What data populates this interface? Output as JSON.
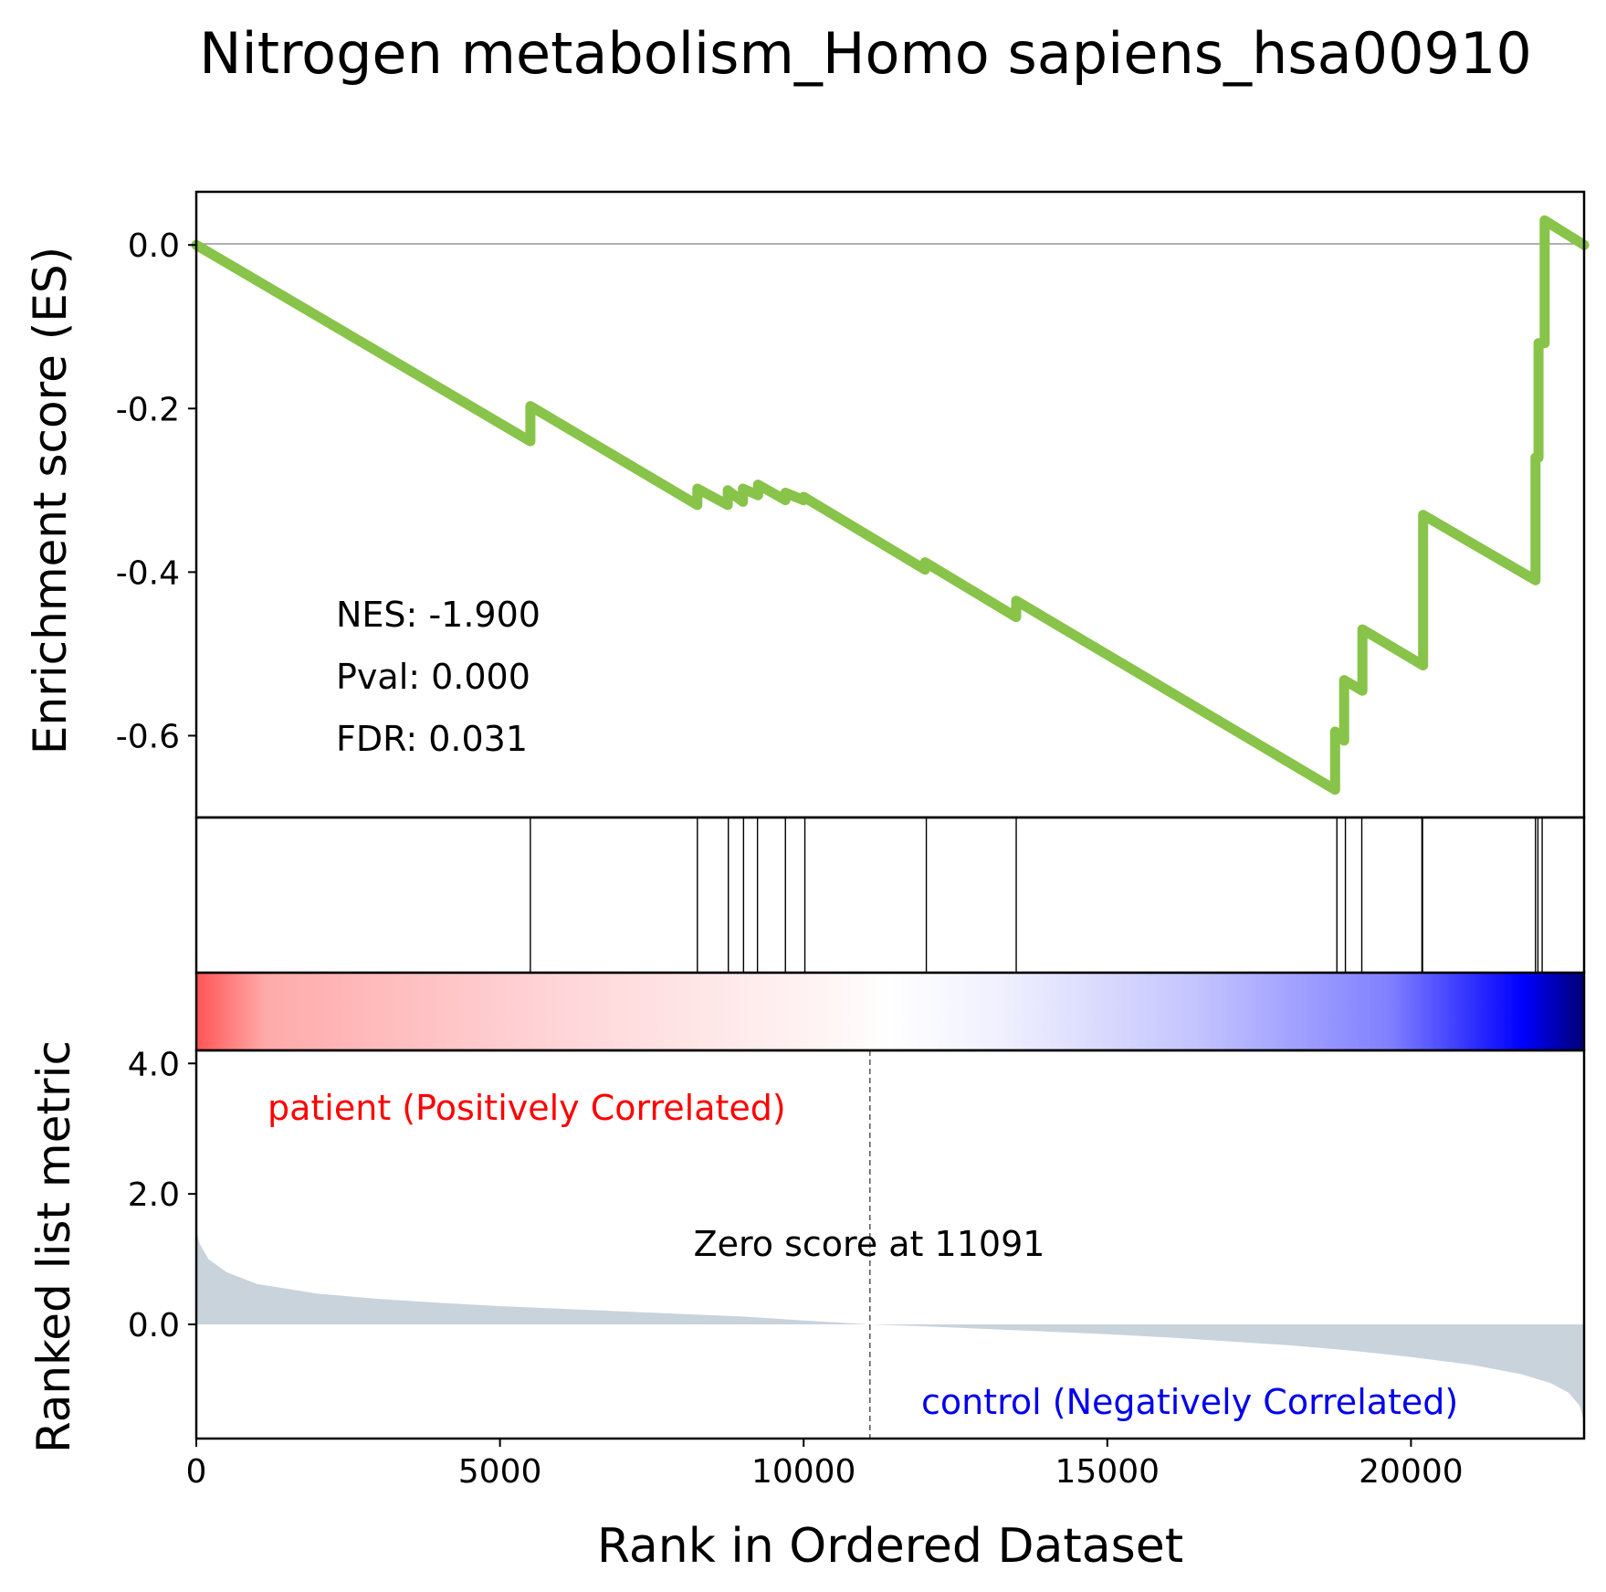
{
  "title": "Nitrogen metabolism_Homo sapiens_hsa00910",
  "colors": {
    "es_line": "#88c34a",
    "metric_fill": "#c9d3dc",
    "positive_label": "#ff0000",
    "negative_label": "#0000ee",
    "frame": "#000000"
  },
  "chart_data": [
    {
      "type": "line",
      "title": "",
      "xlabel": "",
      "ylabel": "Enrichment score (ES)",
      "xlim": [
        0,
        22850
      ],
      "ylim": [
        -0.7,
        0.065
      ],
      "yticks": [
        0.0,
        -0.2,
        -0.4,
        -0.6
      ],
      "ytick_labels": [
        "0.0",
        "-0.2",
        "-0.4",
        "-0.6"
      ],
      "reference_line_y": 0.0,
      "stats": {
        "nes": "NES: -1.900",
        "pval": "Pval: 0.000",
        "fdr": "FDR: 0.031"
      },
      "series": [
        {
          "x": [
            0,
            5500,
            5500,
            8250,
            8250,
            8750,
            8750,
            9000,
            9000,
            9250,
            9250,
            9700,
            9700,
            10000,
            10000,
            12000,
            12000,
            13500,
            13500,
            18750,
            18750,
            18900,
            18900,
            19200,
            19200,
            20200,
            20200,
            20200,
            22050,
            22050,
            22100,
            22100,
            22200,
            22200,
            22850
          ],
          "y": [
            0,
            -0.24,
            -0.197,
            -0.318,
            -0.298,
            -0.318,
            -0.3,
            -0.314,
            -0.298,
            -0.306,
            -0.293,
            -0.312,
            -0.303,
            -0.312,
            -0.308,
            -0.397,
            -0.388,
            -0.455,
            -0.435,
            -0.666,
            -0.595,
            -0.606,
            -0.532,
            -0.545,
            -0.47,
            -0.514,
            -0.42,
            -0.33,
            -0.41,
            -0.26,
            -0.26,
            -0.12,
            -0.12,
            0.03,
            0.0
          ]
        }
      ]
    },
    {
      "type": "other",
      "description_of_marks": "gene set hit ranks",
      "hits": [
        5500,
        8250,
        8760,
        9010,
        9240,
        9700,
        10020,
        12020,
        13500,
        18780,
        18920,
        19190,
        20180,
        20190,
        22050,
        22090,
        22160
      ]
    },
    {
      "type": "area",
      "xlabel": "Rank in Ordered Dataset",
      "ylabel": "Ranked list metric",
      "xlim": [
        0,
        22850
      ],
      "ylim": [
        -1.75,
        4.2
      ],
      "xticks": [
        0,
        5000,
        10000,
        15000,
        20000
      ],
      "xtick_labels": [
        "0",
        "5000",
        "10000",
        "15000",
        "20000"
      ],
      "yticks": [
        4.0,
        2.0,
        0.0
      ],
      "ytick_labels": [
        "4.0",
        "2.0",
        "0.0"
      ],
      "zero_cross": 11091,
      "zero_cross_label": "Zero score at 11091",
      "positive_label": "patient (Positively Correlated)",
      "negative_label": "control (Negatively Correlated)",
      "series": [
        {
          "x": [
            0,
            50,
            200,
            500,
            1000,
            2000,
            3000,
            4000,
            5000,
            6000,
            7000,
            8000,
            9000,
            10000,
            11091,
            12000,
            13000,
            14000,
            15000,
            16000,
            17000,
            18000,
            19000,
            20000,
            21000,
            21800,
            22300,
            22600,
            22780,
            22850
          ],
          "y": [
            1.45,
            1.25,
            1.0,
            0.8,
            0.62,
            0.47,
            0.39,
            0.33,
            0.28,
            0.24,
            0.2,
            0.16,
            0.12,
            0.06,
            0.0,
            -0.03,
            -0.07,
            -0.11,
            -0.15,
            -0.2,
            -0.26,
            -0.32,
            -0.4,
            -0.5,
            -0.62,
            -0.76,
            -0.9,
            -1.05,
            -1.25,
            -1.5
          ]
        }
      ]
    }
  ]
}
